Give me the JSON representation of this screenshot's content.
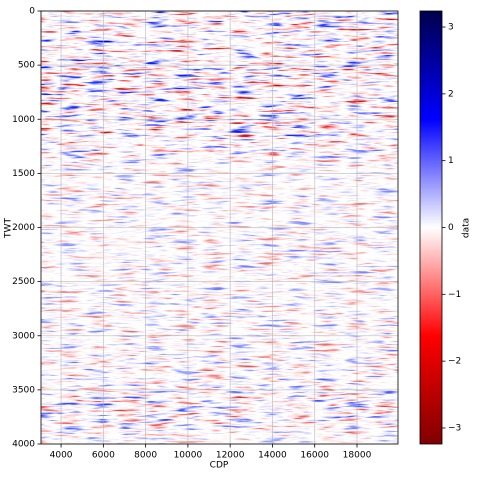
{
  "chart_data": {
    "type": "image",
    "xlabel": "CDP",
    "ylabel": "TWT",
    "colorbar_label": "data",
    "xlim": [
      3050,
      19940
    ],
    "ylim": [
      4000,
      0
    ],
    "xticks": [
      4000,
      6000,
      8000,
      10000,
      12000,
      14000,
      16000,
      18000
    ],
    "yticks": [
      0,
      500,
      1000,
      1500,
      2000,
      2500,
      3000,
      3500,
      4000
    ],
    "grid": true,
    "clim": [
      -3.24,
      3.24
    ],
    "colormap": [
      "#800000",
      "#ff0000",
      "#ffffff",
      "#0000ff",
      "#00004c"
    ],
    "cticks": [
      {
        "value": -3,
        "label": "−3"
      },
      {
        "value": -2,
        "label": "−2"
      },
      {
        "value": -1,
        "label": "−1"
      },
      0,
      1,
      2,
      3
    ]
  }
}
